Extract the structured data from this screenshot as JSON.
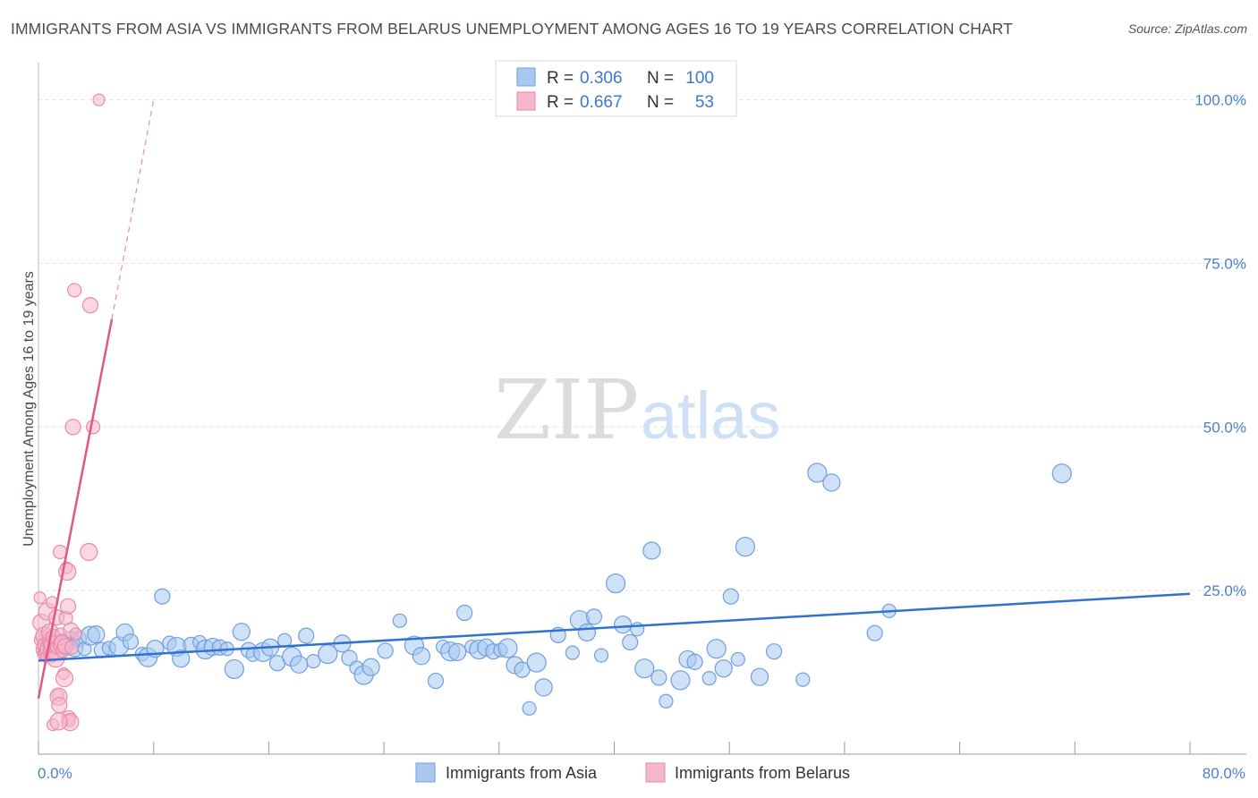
{
  "title": "IMMIGRANTS FROM ASIA VS IMMIGRANTS FROM BELARUS UNEMPLOYMENT AMONG AGES 16 TO 19 YEARS CORRELATION CHART",
  "source": "Source: ZipAtlas.com",
  "watermark": {
    "zip": "ZIP",
    "atlas": "atlas"
  },
  "legend": {
    "r_label": "R =",
    "n_label": "N =",
    "asia": {
      "r": "0.306",
      "n": "100"
    },
    "belarus": {
      "r": "0.667",
      "n": "53"
    }
  },
  "colors": {
    "asia_fill": "#a8c8f0",
    "asia_stroke": "#6f9fe0",
    "asia_line": "#2f72d0",
    "belarus_fill": "#f5b7cb",
    "belarus_stroke": "#e88aaa",
    "belarus_line": "#e0578a",
    "grid": "#e2e2e2",
    "tick_label": "#4a7fd0"
  },
  "chart_data": {
    "type": "scatter",
    "xlabel": "",
    "ylabel": "Unemployment Among Ages 16 to 19 years",
    "xlim": [
      0,
      80
    ],
    "ylim": [
      0,
      105
    ],
    "x_tick_labels": [
      {
        "value": 0,
        "label": "0.0%"
      },
      {
        "value": 80,
        "label": "80.0%"
      }
    ],
    "y_tick_labels": [
      {
        "value": 25,
        "label": "25.0%"
      },
      {
        "value": 50,
        "label": "50.0%"
      },
      {
        "value": 75,
        "label": "75.0%"
      },
      {
        "value": 100,
        "label": "100.0%"
      }
    ],
    "series": [
      {
        "name": "Immigrants from Asia",
        "r": 0.306,
        "n": 100,
        "trend": {
          "x": [
            0,
            80
          ],
          "y": [
            14.3,
            24.5
          ]
        },
        "points": [
          [
            0.4,
            16.5
          ],
          [
            0.6,
            17.2
          ],
          [
            0.8,
            16.0
          ],
          [
            1.0,
            17.5
          ],
          [
            1.2,
            16.8
          ],
          [
            1.4,
            15.8
          ],
          [
            1.6,
            17.0
          ],
          [
            1.8,
            16.3
          ],
          [
            2.0,
            16.9
          ],
          [
            2.2,
            17.3
          ],
          [
            2.5,
            16.2
          ],
          [
            2.8,
            17.6
          ],
          [
            3.2,
            16.1
          ],
          [
            3.6,
            18.1
          ],
          [
            4.0,
            18.3
          ],
          [
            4.4,
            15.9
          ],
          [
            4.9,
            16.2
          ],
          [
            5.6,
            16.5
          ],
          [
            6.0,
            18.6
          ],
          [
            6.4,
            17.2
          ],
          [
            7.2,
            15.3
          ],
          [
            7.6,
            14.8
          ],
          [
            8.1,
            16.1
          ],
          [
            8.6,
            24.1
          ],
          [
            9.1,
            17.0
          ],
          [
            9.6,
            16.4
          ],
          [
            9.9,
            14.6
          ],
          [
            10.6,
            16.7
          ],
          [
            11.2,
            17.1
          ],
          [
            11.6,
            16.0
          ],
          [
            12.1,
            16.4
          ],
          [
            12.6,
            16.3
          ],
          [
            13.1,
            16.1
          ],
          [
            13.6,
            13.0
          ],
          [
            14.1,
            18.7
          ],
          [
            14.6,
            15.9
          ],
          [
            14.9,
            15.2
          ],
          [
            15.6,
            15.6
          ],
          [
            16.1,
            16.3
          ],
          [
            16.6,
            13.9
          ],
          [
            17.1,
            17.4
          ],
          [
            17.6,
            14.9
          ],
          [
            18.1,
            13.7
          ],
          [
            18.6,
            18.1
          ],
          [
            19.1,
            14.2
          ],
          [
            20.1,
            15.3
          ],
          [
            21.1,
            16.9
          ],
          [
            21.6,
            14.7
          ],
          [
            22.1,
            13.2
          ],
          [
            22.6,
            12.1
          ],
          [
            23.1,
            13.3
          ],
          [
            24.1,
            15.8
          ],
          [
            25.1,
            20.4
          ],
          [
            26.1,
            16.6
          ],
          [
            26.6,
            15.0
          ],
          [
            27.6,
            11.2
          ],
          [
            28.1,
            16.4
          ],
          [
            28.6,
            15.7
          ],
          [
            29.1,
            15.6
          ],
          [
            29.6,
            21.6
          ],
          [
            30.1,
            16.4
          ],
          [
            30.6,
            16.0
          ],
          [
            31.1,
            16.3
          ],
          [
            31.6,
            15.7
          ],
          [
            32.1,
            15.9
          ],
          [
            32.6,
            16.2
          ],
          [
            33.1,
            13.6
          ],
          [
            33.6,
            12.9
          ],
          [
            34.1,
            7.0
          ],
          [
            34.6,
            14.0
          ],
          [
            35.1,
            10.2
          ],
          [
            36.1,
            18.2
          ],
          [
            37.1,
            15.5
          ],
          [
            37.6,
            20.5
          ],
          [
            38.1,
            18.6
          ],
          [
            38.6,
            21.0
          ],
          [
            39.1,
            15.1
          ],
          [
            40.1,
            26.1
          ],
          [
            40.6,
            19.8
          ],
          [
            41.1,
            17.1
          ],
          [
            41.6,
            19.1
          ],
          [
            42.1,
            13.1
          ],
          [
            42.6,
            31.1
          ],
          [
            43.1,
            11.7
          ],
          [
            43.6,
            8.1
          ],
          [
            44.6,
            11.3
          ],
          [
            45.1,
            14.5
          ],
          [
            45.6,
            14.1
          ],
          [
            46.6,
            11.6
          ],
          [
            47.1,
            16.1
          ],
          [
            47.6,
            13.1
          ],
          [
            48.1,
            24.1
          ],
          [
            48.6,
            14.5
          ],
          [
            49.1,
            31.7
          ],
          [
            50.1,
            11.8
          ],
          [
            51.1,
            15.7
          ],
          [
            53.1,
            11.4
          ],
          [
            54.1,
            43.0
          ],
          [
            55.1,
            41.5
          ],
          [
            58.1,
            18.5
          ],
          [
            59.1,
            21.9
          ],
          [
            71.1,
            42.9
          ]
        ]
      },
      {
        "name": "Immigrants from Belarus",
        "r": 0.667,
        "n": 53,
        "trend": {
          "x": [
            0,
            5.1
          ],
          "y": [
            8.5,
            66.5
          ]
        },
        "trend_extension": {
          "x": [
            5.1,
            8
          ],
          "y": [
            66.5,
            100
          ]
        },
        "points": [
          [
            0.1,
            23.9
          ],
          [
            0.2,
            20.1
          ],
          [
            0.25,
            17.5
          ],
          [
            0.3,
            16.0
          ],
          [
            0.35,
            15.3
          ],
          [
            0.4,
            18.1
          ],
          [
            0.45,
            16.6
          ],
          [
            0.5,
            15.7
          ],
          [
            0.55,
            14.9
          ],
          [
            0.6,
            21.8
          ],
          [
            0.65,
            16.2
          ],
          [
            0.7,
            17.4
          ],
          [
            0.75,
            15.9
          ],
          [
            0.8,
            18.6
          ],
          [
            0.85,
            16.9
          ],
          [
            0.9,
            15.1
          ],
          [
            0.95,
            23.2
          ],
          [
            1.0,
            16.7
          ],
          [
            1.05,
            17.9
          ],
          [
            1.1,
            15.4
          ],
          [
            1.15,
            16.1
          ],
          [
            1.2,
            14.6
          ],
          [
            1.25,
            20.9
          ],
          [
            1.3,
            16.4
          ],
          [
            1.35,
            9.0
          ],
          [
            1.4,
            8.8
          ],
          [
            1.45,
            7.5
          ],
          [
            1.5,
            30.9
          ],
          [
            1.55,
            18.4
          ],
          [
            1.6,
            16.8
          ],
          [
            1.65,
            17.1
          ],
          [
            1.7,
            15.8
          ],
          [
            1.75,
            12.3
          ],
          [
            1.8,
            11.6
          ],
          [
            1.85,
            16.5
          ],
          [
            1.9,
            20.8
          ],
          [
            1.95,
            28.5
          ],
          [
            2.0,
            27.9
          ],
          [
            2.05,
            22.6
          ],
          [
            2.1,
            5.6
          ],
          [
            2.15,
            5.1
          ],
          [
            2.2,
            4.9
          ],
          [
            2.25,
            18.9
          ],
          [
            2.3,
            16.3
          ],
          [
            1.0,
            4.5
          ],
          [
            1.4,
            5.0
          ],
          [
            2.4,
            50.0
          ],
          [
            2.5,
            70.9
          ],
          [
            2.6,
            18.4
          ],
          [
            3.5,
            30.9
          ],
          [
            3.6,
            68.6
          ],
          [
            3.8,
            50.0
          ],
          [
            4.2,
            100.0
          ]
        ]
      }
    ]
  },
  "bottom_legend": {
    "asia": "Immigrants from Asia",
    "belarus": "Immigrants from Belarus"
  }
}
